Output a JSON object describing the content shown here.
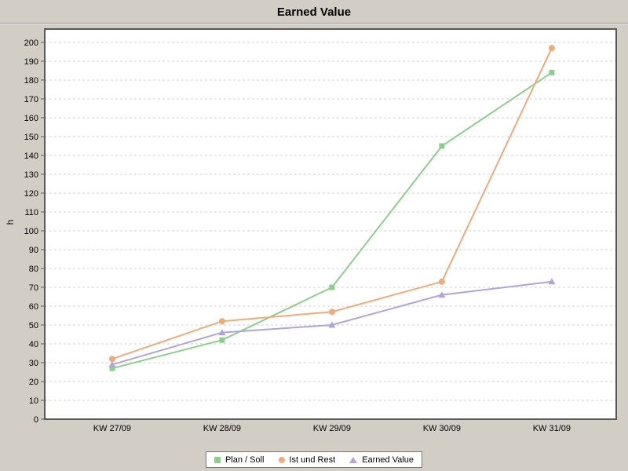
{
  "chart_data": {
    "type": "line",
    "title": "Earned Value",
    "xlabel": "",
    "ylabel": "h",
    "categories": [
      "KW 27/09",
      "KW 28/09",
      "KW 29/09",
      "KW 30/09",
      "KW 31/09"
    ],
    "series": [
      {
        "name": "Plan / Soll",
        "marker": "square",
        "color": "#8ccf8c",
        "values": [
          27,
          42,
          70,
          145,
          184
        ]
      },
      {
        "name": "Ist und Rest",
        "marker": "circle",
        "color": "#efab7b",
        "values": [
          32,
          52,
          57,
          73,
          197
        ]
      },
      {
        "name": "Earned Value",
        "marker": "triangle",
        "color": "#b0a4d9",
        "values": [
          29,
          46,
          50,
          66,
          73
        ]
      }
    ],
    "ylim": [
      0,
      200
    ],
    "ytick_step": 10,
    "grid": "horizontal-dashed",
    "legend_position": "bottom-center"
  },
  "colors": {
    "background": "#d2cec5",
    "plot_background": "#ffffff",
    "plot_border": "#595959",
    "gridline": "#d2d2d2",
    "text": "#000000",
    "legend_background": "#ffffff",
    "legend_border": "#767676"
  }
}
